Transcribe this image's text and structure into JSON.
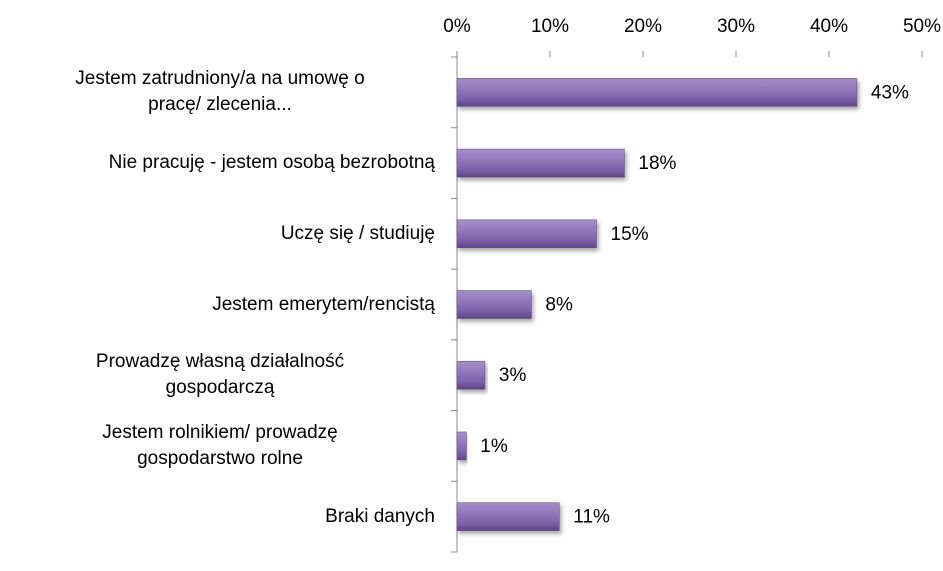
{
  "chart_data": {
    "type": "bar",
    "orientation": "horizontal",
    "categories": [
      "Jestem zatrudniony/a na umowę o\npracę/ zlecenia...",
      "Nie pracuję - jestem osobą bezrobotną",
      "Uczę się / studiuję",
      "Jestem emerytem/rencistą",
      "Prowadzę własną działalność\ngospodarczą",
      "Jestem rolnikiem/ prowadzę\ngospodarstwo rolne",
      "Braki danych"
    ],
    "values": [
      43,
      18,
      15,
      8,
      3,
      1,
      11
    ],
    "value_labels": [
      "43%",
      "18%",
      "15%",
      "8%",
      "3%",
      "1%",
      "11%"
    ],
    "color": "#8064a2",
    "xlim": [
      0,
      50
    ],
    "xticks": [
      {
        "value": 0,
        "label": "0%"
      },
      {
        "value": 10,
        "label": "10%"
      },
      {
        "value": 20,
        "label": "20%"
      },
      {
        "value": 30,
        "label": "30%"
      },
      {
        "value": 40,
        "label": "40%"
      },
      {
        "value": 50,
        "label": "50%"
      }
    ],
    "grid": false
  }
}
